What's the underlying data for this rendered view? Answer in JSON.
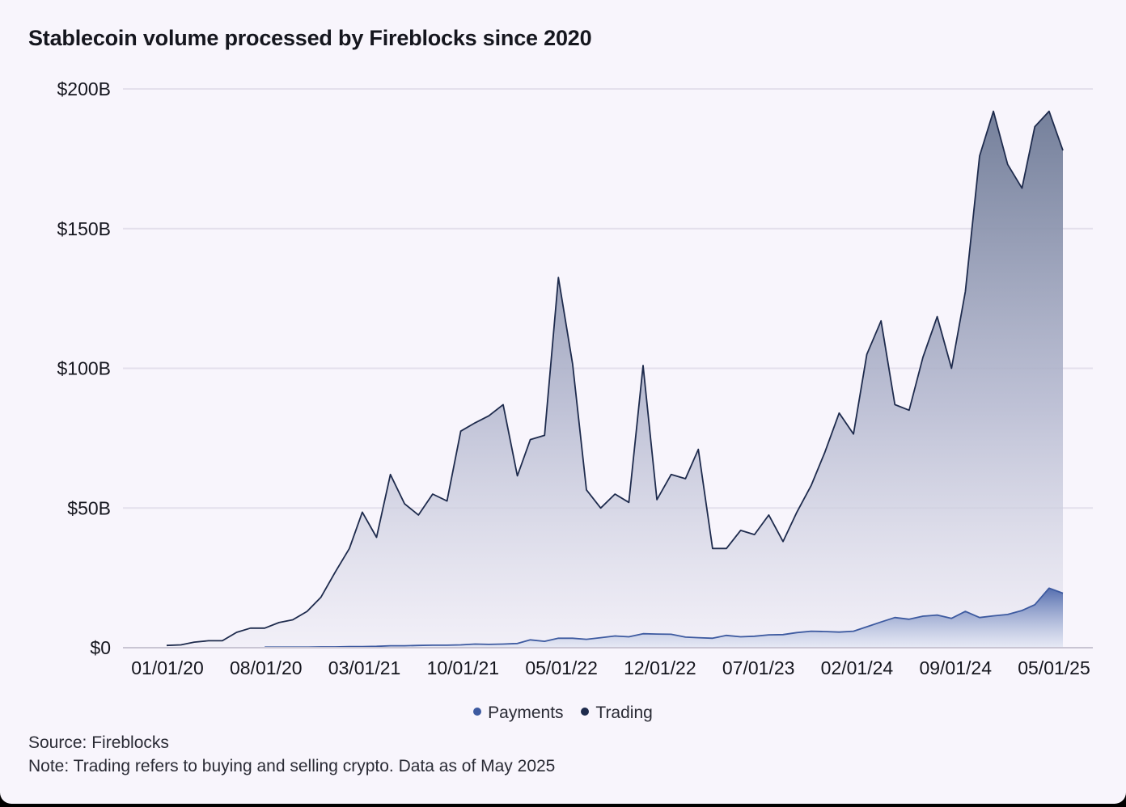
{
  "title": "Stablecoin volume processed by Fireblocks since 2020",
  "source": "Source: Fireblocks",
  "note": "Note: Trading refers to buying and selling crypto. Data as of May 2025",
  "colors": {
    "trading": "#1e2b4d",
    "payments": "#3d5aa0",
    "grid": "#e4e0ec",
    "axis": "#c9c5d3"
  },
  "chart_data": {
    "type": "area",
    "x_start": "2020-01-01",
    "x_end": "2025-05-01",
    "x_tick_labels": [
      "01/01/20",
      "08/01/20",
      "03/01/21",
      "10/01/21",
      "05/01/22",
      "12/01/22",
      "07/01/23",
      "02/01/24",
      "09/01/24",
      "05/01/25"
    ],
    "y_tick_labels": [
      "$0",
      "$50B",
      "$100B",
      "$150B",
      "$200B"
    ],
    "y_ticks": [
      0,
      50,
      100,
      150,
      200
    ],
    "ylim": [
      0,
      200
    ],
    "y_unit": "billions USD",
    "legend": {
      "position": "bottom-center",
      "entries": [
        "Payments",
        "Trading"
      ]
    },
    "grid": "horizontal",
    "series": [
      {
        "name": "Trading",
        "points": [
          [
            "2020-01-01",
            0.8
          ],
          [
            "2020-02-01",
            1.0
          ],
          [
            "2020-03-01",
            2.0
          ],
          [
            "2020-04-01",
            2.5
          ],
          [
            "2020-05-01",
            2.5
          ],
          [
            "2020-06-01",
            5.5
          ],
          [
            "2020-07-01",
            7.0
          ],
          [
            "2020-08-01",
            7.0
          ],
          [
            "2020-09-01",
            9.0
          ],
          [
            "2020-10-01",
            10.0
          ],
          [
            "2020-11-01",
            13.0
          ],
          [
            "2020-12-01",
            18.0
          ],
          [
            "2021-01-01",
            27.0
          ],
          [
            "2021-02-01",
            35.5
          ],
          [
            "2021-03-01",
            48.5
          ],
          [
            "2021-04-01",
            39.5
          ],
          [
            "2021-05-01",
            62.0
          ],
          [
            "2021-06-01",
            51.5
          ],
          [
            "2021-07-01",
            47.5
          ],
          [
            "2021-08-01",
            55.0
          ],
          [
            "2021-09-01",
            52.5
          ],
          [
            "2021-10-01",
            77.5
          ],
          [
            "2021-11-01",
            80.5
          ],
          [
            "2021-12-01",
            83.0
          ],
          [
            "2022-01-01",
            87.0
          ],
          [
            "2022-02-01",
            61.5
          ],
          [
            "2022-03-01",
            74.5
          ],
          [
            "2022-04-01",
            76.0
          ],
          [
            "2022-05-01",
            132.5
          ],
          [
            "2022-06-01",
            101.5
          ],
          [
            "2022-07-01",
            56.5
          ],
          [
            "2022-08-01",
            50.0
          ],
          [
            "2022-09-01",
            55.0
          ],
          [
            "2022-10-01",
            52.0
          ],
          [
            "2022-11-01",
            101.0
          ],
          [
            "2022-12-01",
            53.0
          ],
          [
            "2023-01-01",
            62.0
          ],
          [
            "2023-02-01",
            60.5
          ],
          [
            "2023-03-01",
            71.0
          ],
          [
            "2023-04-01",
            35.5
          ],
          [
            "2023-05-01",
            35.5
          ],
          [
            "2023-06-01",
            42.0
          ],
          [
            "2023-07-01",
            40.5
          ],
          [
            "2023-08-01",
            47.5
          ],
          [
            "2023-09-01",
            38.0
          ],
          [
            "2023-10-01",
            48.5
          ],
          [
            "2023-11-01",
            58.0
          ],
          [
            "2023-12-01",
            70.0
          ],
          [
            "2024-01-01",
            84.0
          ],
          [
            "2024-02-01",
            76.5
          ],
          [
            "2024-03-01",
            105.0
          ],
          [
            "2024-04-01",
            117.0
          ],
          [
            "2024-05-01",
            87.0
          ],
          [
            "2024-06-01",
            85.0
          ],
          [
            "2024-07-01",
            104.0
          ],
          [
            "2024-08-01",
            118.5
          ],
          [
            "2024-09-01",
            100.0
          ],
          [
            "2024-10-01",
            127.5
          ],
          [
            "2024-11-01",
            176.0
          ],
          [
            "2024-12-01",
            192.0
          ],
          [
            "2025-01-01",
            173.0
          ],
          [
            "2025-02-01",
            164.5
          ],
          [
            "2025-03-01",
            186.5
          ],
          [
            "2025-04-01",
            192.0
          ],
          [
            "2025-05-01",
            178.0
          ]
        ]
      },
      {
        "name": "Payments",
        "points": [
          [
            "2020-08-01",
            0.2
          ],
          [
            "2020-09-01",
            0.2
          ],
          [
            "2020-10-01",
            0.2
          ],
          [
            "2020-11-01",
            0.2
          ],
          [
            "2020-12-01",
            0.3
          ],
          [
            "2021-01-01",
            0.3
          ],
          [
            "2021-02-01",
            0.4
          ],
          [
            "2021-03-01",
            0.4
          ],
          [
            "2021-04-01",
            0.5
          ],
          [
            "2021-05-01",
            0.7
          ],
          [
            "2021-06-01",
            0.7
          ],
          [
            "2021-07-01",
            0.8
          ],
          [
            "2021-08-01",
            0.9
          ],
          [
            "2021-09-01",
            0.9
          ],
          [
            "2021-10-01",
            1.0
          ],
          [
            "2021-11-01",
            1.3
          ],
          [
            "2021-12-01",
            1.2
          ],
          [
            "2022-01-01",
            1.3
          ],
          [
            "2022-02-01",
            1.5
          ],
          [
            "2022-03-01",
            2.8
          ],
          [
            "2022-04-01",
            2.3
          ],
          [
            "2022-05-01",
            3.4
          ],
          [
            "2022-06-01",
            3.4
          ],
          [
            "2022-07-01",
            3.0
          ],
          [
            "2022-08-01",
            3.6
          ],
          [
            "2022-09-01",
            4.2
          ],
          [
            "2022-10-01",
            3.9
          ],
          [
            "2022-11-01",
            5.0
          ],
          [
            "2022-12-01",
            4.9
          ],
          [
            "2023-01-01",
            4.8
          ],
          [
            "2023-02-01",
            3.8
          ],
          [
            "2023-03-01",
            3.6
          ],
          [
            "2023-04-01",
            3.4
          ],
          [
            "2023-05-01",
            4.4
          ],
          [
            "2023-06-01",
            3.9
          ],
          [
            "2023-07-01",
            4.1
          ],
          [
            "2023-08-01",
            4.6
          ],
          [
            "2023-09-01",
            4.7
          ],
          [
            "2023-10-01",
            5.4
          ],
          [
            "2023-11-01",
            5.9
          ],
          [
            "2023-12-01",
            5.8
          ],
          [
            "2024-01-01",
            5.6
          ],
          [
            "2024-02-01",
            5.9
          ],
          [
            "2024-03-01",
            7.5
          ],
          [
            "2024-04-01",
            9.2
          ],
          [
            "2024-05-01",
            10.8
          ],
          [
            "2024-06-01",
            10.2
          ],
          [
            "2024-07-01",
            11.3
          ],
          [
            "2024-08-01",
            11.7
          ],
          [
            "2024-09-01",
            10.5
          ],
          [
            "2024-10-01",
            13.0
          ],
          [
            "2024-11-01",
            10.8
          ],
          [
            "2024-12-01",
            11.4
          ],
          [
            "2025-01-01",
            11.9
          ],
          [
            "2025-02-01",
            13.3
          ],
          [
            "2025-03-01",
            15.4
          ],
          [
            "2025-04-01",
            21.3
          ],
          [
            "2025-05-01",
            19.5
          ]
        ]
      }
    ]
  }
}
